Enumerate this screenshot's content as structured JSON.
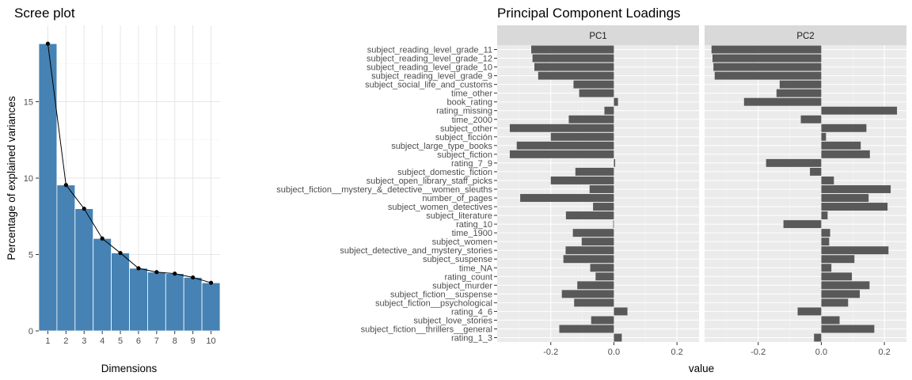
{
  "chart_data": [
    {
      "type": "bar",
      "title": "Scree plot",
      "xlabel": "Dimensions",
      "ylabel": "Percentage of explained variances",
      "categories": [
        "1",
        "2",
        "3",
        "4",
        "5",
        "6",
        "7",
        "8",
        "9",
        "10"
      ],
      "values": [
        18.8,
        9.55,
        8.0,
        6.05,
        5.1,
        4.1,
        3.85,
        3.75,
        3.5,
        3.15
      ],
      "line_overlay": true,
      "ylim": [
        0,
        20
      ],
      "yticks": [
        0,
        5,
        10,
        15
      ],
      "grid": true,
      "colors": {
        "bar": "#4682b4",
        "line": "#000000"
      }
    },
    {
      "type": "bar",
      "orientation": "horizontal",
      "title": "Principal Component Loadings",
      "xlabel": "value",
      "ylabel": "",
      "xlim": [
        -0.37,
        0.27
      ],
      "xticks": [
        -0.2,
        0.0,
        0.2
      ],
      "xtick_labels": [
        "-0.2",
        "0.0",
        "0.2"
      ],
      "facets": [
        "PC1",
        "PC2"
      ],
      "categories": [
        "subject_reading_level_grade_11",
        "subject_reading_level_grade_12",
        "subject_reading_level_grade_10",
        "subject_reading_level_grade_9",
        "subject_social_life_and_customs",
        "time_other",
        "book_rating",
        "rating_missing",
        "time_2000",
        "subject_other",
        "subject_ficción",
        "subject_large_type_books",
        "subject_fiction",
        "rating_7_9",
        "subject_domestic_fiction",
        "subject_open_library_staff_picks",
        "subject_fiction__mystery_&_detective__women_sleuths",
        "number_of_pages",
        "subject_women_detectives",
        "subject_literature",
        "rating_10",
        "time_1900",
        "subject_women",
        "subject_detective_and_mystery_stories",
        "subject_suspense",
        "time_NA",
        "rating_count",
        "subject_murder",
        "subject_fiction__suspense",
        "subject_fiction__psychological",
        "rating_4_6",
        "subject_love_stories",
        "subject_fiction__thrillers__general",
        "rating_1_3"
      ],
      "series": [
        {
          "name": "PC1",
          "values": [
            -0.262,
            -0.258,
            -0.252,
            -0.24,
            -0.128,
            -0.11,
            0.013,
            -0.03,
            -0.143,
            -0.33,
            -0.2,
            -0.308,
            -0.33,
            0.004,
            -0.122,
            -0.2,
            -0.077,
            -0.297,
            -0.066,
            -0.152,
            -0.002,
            -0.13,
            -0.102,
            -0.153,
            -0.16,
            -0.075,
            -0.058,
            -0.116,
            -0.165,
            -0.126,
            0.043,
            -0.072,
            -0.173,
            0.025
          ]
        },
        {
          "name": "PC2",
          "values": [
            -0.348,
            -0.345,
            -0.342,
            -0.338,
            -0.132,
            -0.142,
            -0.245,
            0.24,
            -0.065,
            0.143,
            0.015,
            0.125,
            0.154,
            -0.175,
            -0.036,
            0.04,
            0.22,
            0.15,
            0.21,
            0.02,
            -0.12,
            0.028,
            0.025,
            0.213,
            0.105,
            0.032,
            0.097,
            0.153,
            0.122,
            0.085,
            -0.075,
            0.058,
            0.168,
            -0.023
          ]
        }
      ],
      "grid": true,
      "colors": {
        "bar": "#595959",
        "panel": "#ebebeb",
        "strip": "#d9d9d9"
      }
    }
  ]
}
